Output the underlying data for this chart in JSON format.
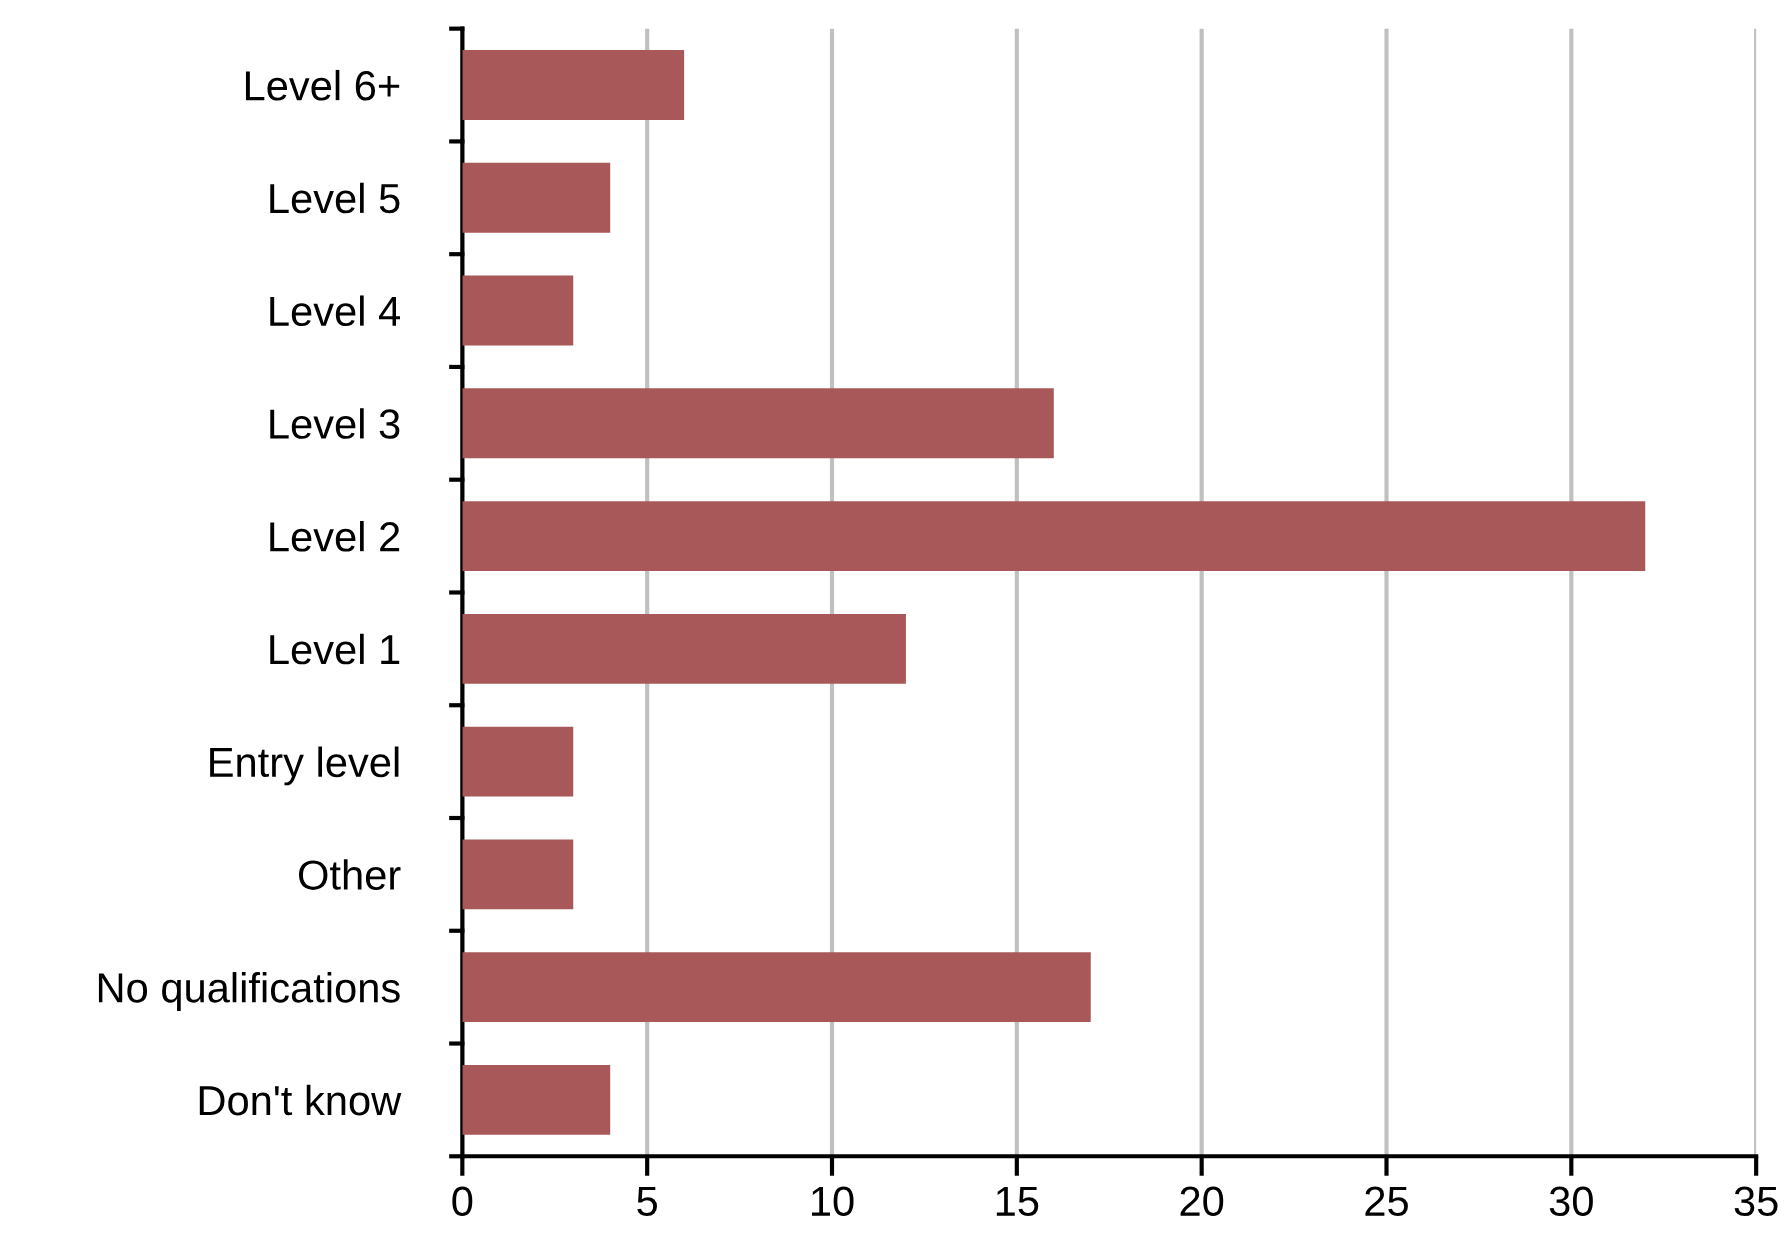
{
  "chart_data": {
    "type": "bar",
    "orientation": "horizontal",
    "categories": [
      "Level 6+",
      "Level 5",
      "Level 4",
      "Level 3",
      "Level 2",
      "Level 1",
      "Entry level",
      "Other",
      "No qualifications",
      "Don't know"
    ],
    "values": [
      6,
      4,
      3,
      16,
      32,
      12,
      3,
      3,
      17,
      4
    ],
    "color": "#a85858",
    "xlim": [
      0,
      35
    ],
    "xticks": [
      0,
      5,
      10,
      15,
      20,
      25,
      30,
      35
    ],
    "grid": "x",
    "legend": false
  }
}
